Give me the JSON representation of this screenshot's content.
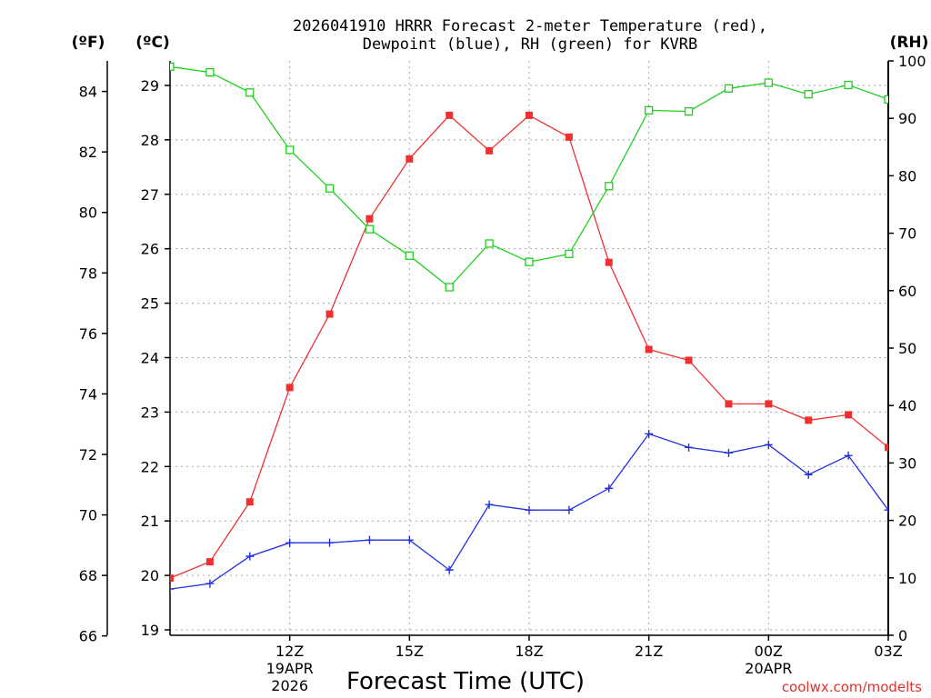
{
  "chart_data": {
    "type": "line",
    "title_lines": [
      "2026041910 HRRR Forecast 2-meter Temperature (red),",
      "Dewpoint (blue), RH (green) for KVRB"
    ],
    "axis_units": {
      "fahrenheit": "(ºF)",
      "celsius": "(ºC)",
      "rh": "(RH)"
    },
    "xlabel": "Forecast Time (UTC)",
    "credit": "coolwx.com/modelts",
    "x_range": [
      9,
      27
    ],
    "celsius_range": [
      18.9,
      29.45
    ],
    "rh_range": [
      0,
      100
    ],
    "celsius_ticks": [
      19,
      20,
      21,
      22,
      23,
      24,
      25,
      26,
      27,
      28,
      29
    ],
    "fahrenheit_ticks": [
      66,
      68,
      70,
      72,
      74,
      76,
      78,
      80,
      82,
      84
    ],
    "rh_ticks": [
      0,
      10,
      20,
      30,
      40,
      50,
      60,
      70,
      80,
      90,
      100
    ],
    "x_ticks": [
      {
        "x": 12,
        "label": "12Z",
        "sub1": "19APR",
        "sub2": "2026"
      },
      {
        "x": 15,
        "label": "15Z",
        "sub1": "",
        "sub2": ""
      },
      {
        "x": 18,
        "label": "18Z",
        "sub1": "",
        "sub2": ""
      },
      {
        "x": 21,
        "label": "21Z",
        "sub1": "",
        "sub2": ""
      },
      {
        "x": 24,
        "label": "00Z",
        "sub1": "20APR",
        "sub2": ""
      },
      {
        "x": 27,
        "label": "03Z",
        "sub1": "",
        "sub2": ""
      }
    ],
    "hours": [
      9,
      10,
      11,
      12,
      13,
      14,
      15,
      16,
      17,
      18,
      19,
      20,
      21,
      22,
      23,
      24,
      25,
      26,
      27
    ],
    "series": [
      {
        "name": "2-meter Temperature",
        "axis": "celsius",
        "color": "#f03030",
        "marker": "filled-square",
        "values": [
          19.95,
          20.25,
          21.35,
          23.45,
          24.8,
          26.55,
          27.65,
          28.45,
          27.8,
          28.45,
          28.05,
          25.75,
          24.15,
          23.95,
          23.15,
          23.15,
          22.85,
          22.95,
          22.35
        ]
      },
      {
        "name": "Dewpoint",
        "axis": "celsius",
        "color": "#2030e0",
        "marker": "plus",
        "values": [
          19.75,
          19.85,
          20.35,
          20.6,
          20.6,
          20.65,
          20.65,
          20.1,
          21.3,
          21.2,
          21.2,
          21.6,
          22.6,
          22.35,
          22.25,
          22.4,
          21.85,
          22.2,
          21.2
        ]
      },
      {
        "name": "Relative Humidity",
        "axis": "rh",
        "color": "#20d020",
        "marker": "open-square",
        "values": [
          99,
          98,
          94.5,
          84.5,
          77.8,
          70.7,
          66.1,
          60.6,
          68.2,
          65,
          66.4,
          78.2,
          91.4,
          91.2,
          95.2,
          96.2,
          94.2,
          95.8,
          93.3
        ]
      }
    ]
  }
}
